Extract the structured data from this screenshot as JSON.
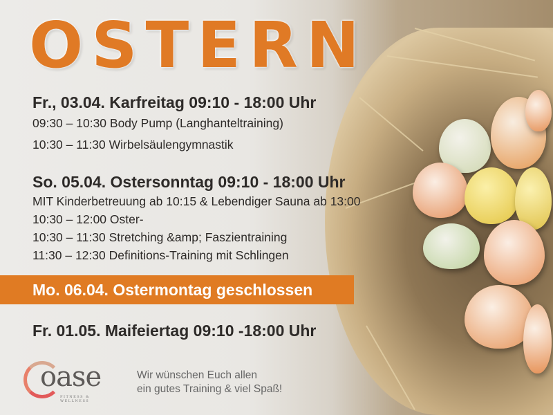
{
  "title": "OSTERN",
  "days": [
    {
      "heading": "Fr., 03.04. Karfreitag 09:10 - 18:00 Uhr",
      "lines": [
        "09:30 – 10:30 Body Pump (Langhanteltraining)",
        "10:30 – 11:30 Wirbelsäulengymnastik"
      ]
    },
    {
      "heading": "So. 05.04. Ostersonntag 09:10 - 18:00 Uhr",
      "lines": [
        "MIT Kinderbetreuung ab 10:15 & Lebendiger Sauna ab 13:00",
        "10:30 – 12:00 Oster-",
        "10:30 – 11:30 Stretching &amp; Faszientraining",
        "11:30 – 12:30 Definitions-Training mit Schlingen"
      ]
    }
  ],
  "closed_banner": "Mo. 06.04. Ostermontag geschlossen",
  "may_heading": "Fr. 01.05. Maifeiertag 09:10 -18:00 Uhr",
  "logo": {
    "word": "oase",
    "tagline": "FITNESS & WELLNESS"
  },
  "greeting": [
    "Wir wünschen Euch allen",
    "ein gutes Training & viel Spaß!"
  ],
  "colors": {
    "accent": "#e07b23",
    "text": "#2d2a28"
  }
}
